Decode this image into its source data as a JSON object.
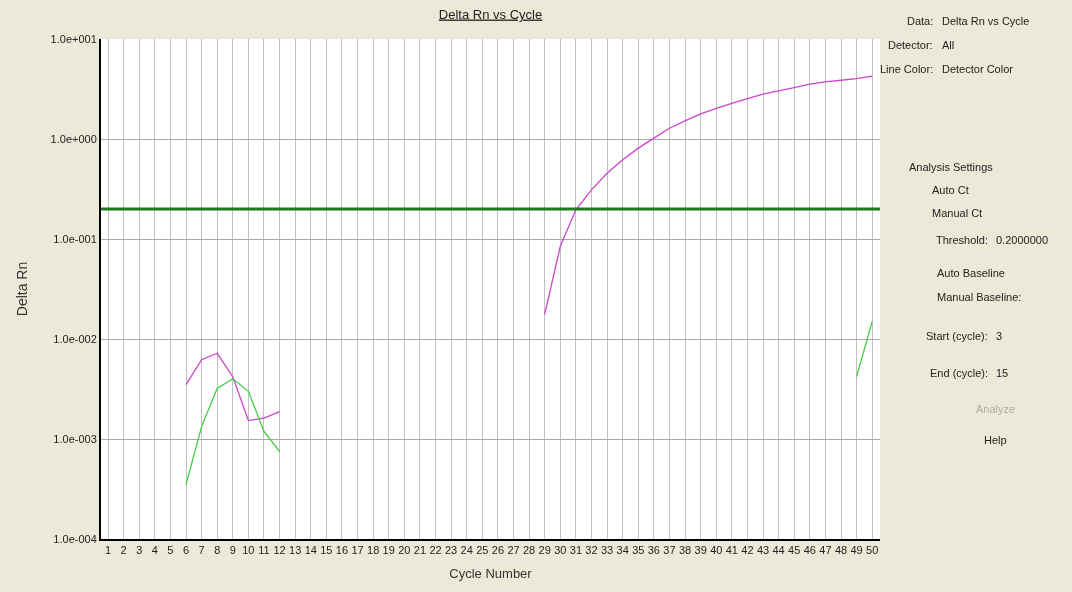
{
  "chart_data": [
    {
      "type": "line",
      "title": "Delta Rn vs Cycle",
      "xlabel": "Cycle Number",
      "ylabel": "Delta Rn",
      "log": "y",
      "grid": true,
      "marker": "none",
      "line_style": "solid",
      "xlim": [
        0.55,
        50.5
      ],
      "xticks": [
        1,
        2,
        3,
        4,
        5,
        6,
        7,
        8,
        9,
        10,
        11,
        12,
        13,
        14,
        15,
        16,
        17,
        18,
        19,
        20,
        21,
        22,
        23,
        24,
        25,
        26,
        27,
        28,
        29,
        30,
        31,
        32,
        33,
        34,
        35,
        36,
        37,
        38,
        39,
        40,
        41,
        42,
        43,
        44,
        45,
        46,
        47,
        48,
        49,
        50
      ],
      "ylim": [
        0.0001,
        10
      ],
      "yticks": [
        {
          "value": 0.0001,
          "label": "1.0e-004"
        },
        {
          "value": 0.001,
          "label": "1.0e-003"
        },
        {
          "value": 0.01,
          "label": "1.0e-002"
        },
        {
          "value": 0.1,
          "label": "1.0e-001"
        },
        {
          "value": 1,
          "label": "1.0e+000"
        },
        {
          "value": 10,
          "label": "1.0e+001"
        }
      ],
      "series": [
        {
          "color": "#cc44cc",
          "x": [
            6,
            7,
            8,
            9,
            10,
            11,
            12,
            13,
            29,
            30,
            31,
            32,
            33,
            34,
            35,
            36,
            37,
            38,
            39,
            40,
            41,
            42,
            43,
            44,
            45,
            46,
            47,
            48,
            49,
            50
          ],
          "values": [
            0.0035,
            0.0062,
            0.0072,
            0.0042,
            0.00153,
            0.00162,
            0.00188,
            null,
            0.0176,
            0.0845,
            0.196,
            0.31,
            0.455,
            0.62,
            0.81,
            1.02,
            1.28,
            1.52,
            1.78,
            2.02,
            2.27,
            2.54,
            2.81,
            3.03,
            3.27,
            3.53,
            3.73,
            3.87,
            4.02,
            4.25
          ]
        },
        {
          "color": "#44cc44",
          "x": [
            6,
            7,
            8,
            9,
            10,
            11,
            12,
            13,
            49,
            50
          ],
          "values": [
            0.00035,
            0.00133,
            0.0032,
            0.004,
            0.003,
            0.00119,
            0.00075,
            null,
            0.0042,
            0.015
          ]
        }
      ],
      "ref_lines": [
        {
          "axis": "y",
          "value": 0.2,
          "color": "#1f7a1f",
          "line_style": "solid"
        }
      ]
    },
    {
      "type": "other",
      "annotations": [
        "Data:",
        "Delta Rn vs Cycle",
        "Detector:",
        "All",
        "Line Color:",
        "Detector Color",
        "Analysis Settings",
        "Auto Ct",
        "Manual Ct",
        "Threshold:",
        "0.2000000",
        "Auto Baseline",
        "Manual Baseline:",
        "Start (cycle):",
        "3",
        "End (cycle):",
        "15",
        "Analyze",
        "Help"
      ]
    }
  ]
}
